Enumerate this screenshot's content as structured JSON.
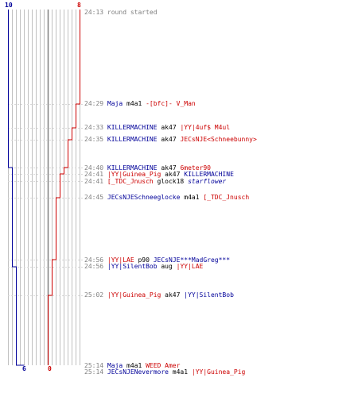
{
  "colors": {
    "team_a": "#000099",
    "team_b": "#cc0000",
    "grid": "#c0c0c0",
    "center": "#808080",
    "text": "#000000",
    "time": "#808080"
  },
  "chart_data": {
    "type": "line",
    "x_kind": "kill index",
    "series": [
      {
        "team": "blue",
        "values": [
          10,
          10,
          10,
          10,
          9,
          9,
          9,
          9,
          9,
          8,
          8,
          7,
          6
        ]
      },
      {
        "team": "red",
        "values": [
          8,
          7,
          6,
          5,
          4,
          3,
          3,
          2,
          1,
          1,
          0,
          0,
          0
        ]
      }
    ],
    "top_labels": {
      "left": "10",
      "right": "8"
    },
    "bottom_labels": {
      "left": "6",
      "right": "0"
    }
  },
  "log": [
    {
      "time": "24:13",
      "parts": [
        {
          "text": "round started",
          "style": "ev"
        }
      ]
    },
    {
      "time": "24:29",
      "parts": [
        {
          "text": "Maja",
          "style": "blue"
        },
        {
          "text": " m4a1 ",
          "style": "w"
        },
        {
          "text": "-[bfc]- V_Man",
          "style": "red"
        }
      ]
    },
    {
      "time": "24:33",
      "parts": [
        {
          "text": "KILLERMACHINE",
          "style": "blue"
        },
        {
          "text": " ak47 ",
          "style": "w"
        },
        {
          "text": "|YY|4uf$ M4ul",
          "style": "red"
        }
      ]
    },
    {
      "time": "24:35",
      "parts": [
        {
          "text": "KILLERMACHINE",
          "style": "blue"
        },
        {
          "text": " ak47 ",
          "style": "w"
        },
        {
          "text": "JECsNJE<Schneebunny>",
          "style": "red"
        }
      ]
    },
    {
      "time": "24:40",
      "parts": [
        {
          "text": "KILLERMACHINE",
          "style": "blue"
        },
        {
          "text": " ak47 ",
          "style": "w"
        },
        {
          "text": "6meter90",
          "style": "red"
        }
      ]
    },
    {
      "time": "24:41",
      "parts": [
        {
          "text": "|YY|Guinea_Pig",
          "style": "red"
        },
        {
          "text": " ak47 ",
          "style": "w"
        },
        {
          "text": "KILLERMACHINE",
          "style": "blue"
        }
      ]
    },
    {
      "time": "24:41",
      "parts": [
        {
          "text": "[_TDC_Jnusch",
          "style": "red"
        },
        {
          "text": " glock18 ",
          "style": "w"
        },
        {
          "text": "starflower",
          "style": "blue italic"
        }
      ]
    },
    {
      "time": "24:45",
      "parts": [
        {
          "text": "JECsNJESchneeglocke",
          "style": "blue"
        },
        {
          "text": " m4a1 ",
          "style": "w"
        },
        {
          "text": "[_TDC_Jnusch",
          "style": "red"
        }
      ]
    },
    {
      "time": "24:56",
      "parts": [
        {
          "text": "|YY|LAE",
          "style": "red"
        },
        {
          "text": " p90 ",
          "style": "w"
        },
        {
          "text": "JECsNJE***MadGreg***",
          "style": "blue"
        }
      ]
    },
    {
      "time": "24:56",
      "parts": [
        {
          "text": "|YY|SilentBob",
          "style": "blue"
        },
        {
          "text": " aug ",
          "style": "w"
        },
        {
          "text": "|YY|LAE",
          "style": "red"
        }
      ]
    },
    {
      "time": "25:02",
      "parts": [
        {
          "text": "|YY|Guinea_Pig",
          "style": "red"
        },
        {
          "text": " ak47 ",
          "style": "w"
        },
        {
          "text": "|YY|SilentBob",
          "style": "blue"
        }
      ]
    },
    {
      "time": "25:14",
      "parts": [
        {
          "text": "Maja",
          "style": "blue"
        },
        {
          "text": " m4a1 ",
          "style": "w"
        },
        {
          "text": "WEED Amer",
          "style": "red"
        }
      ]
    },
    {
      "time": "25:14",
      "parts": [
        {
          "text": "JECsNJENevermore",
          "style": "blue"
        },
        {
          "text": " m4a1 ",
          "style": "w"
        },
        {
          "text": "|YY|Guinea_Pig",
          "style": "red"
        }
      ]
    }
  ]
}
